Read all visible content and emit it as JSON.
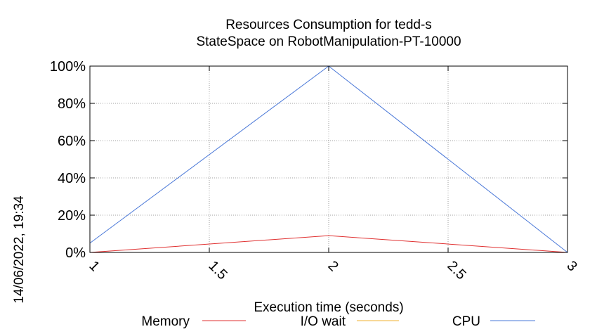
{
  "chart_data": {
    "type": "line",
    "title": "Resources Consumption for tedd-s",
    "subtitle": "StateSpace on RobotManipulation-PT-10000",
    "xlabel": "Execution time (seconds)",
    "ylabel": "",
    "timestamp": "14/06/2022, 19:34",
    "xlim": [
      1,
      3
    ],
    "ylim": [
      0,
      100
    ],
    "x_ticks": [
      1,
      1.5,
      2,
      2.5,
      3
    ],
    "x_tick_labels": [
      "1",
      "1.5",
      "2",
      "2.5",
      "3"
    ],
    "y_ticks": [
      0,
      20,
      40,
      60,
      80,
      100
    ],
    "y_tick_labels": [
      "0%",
      "20%",
      "40%",
      "60%",
      "80%",
      "100%"
    ],
    "grid": true,
    "legend": "bottom",
    "series": [
      {
        "name": "Memory",
        "color": "#e03030",
        "x": [
          1,
          2,
          3
        ],
        "values": [
          0,
          9,
          0
        ]
      },
      {
        "name": "I/O wait",
        "color": "#f0b030",
        "x": [
          1,
          2,
          3
        ],
        "values": [
          0,
          0,
          0
        ]
      },
      {
        "name": "CPU",
        "color": "#4a78d8",
        "x": [
          1,
          2,
          3
        ],
        "values": [
          5,
          100,
          0
        ]
      }
    ]
  }
}
